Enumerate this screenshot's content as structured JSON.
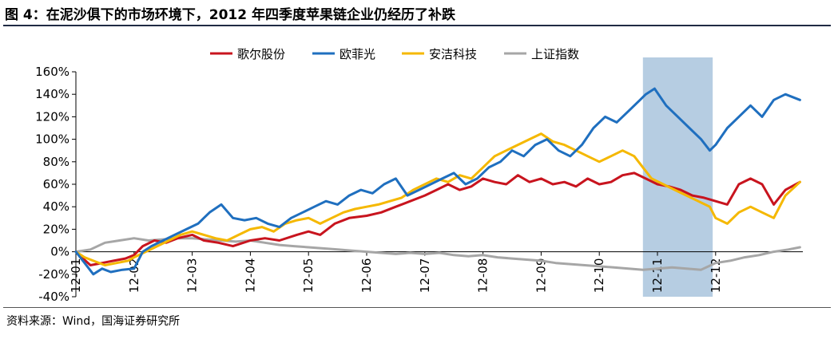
{
  "figure": {
    "title": "图 4：在泥沙俱下的市场环境下，2012 年四季度苹果链企业仍经历了补跌",
    "source": "资料来源：Wind，国海证券研究所"
  },
  "colors": {
    "歌尔股份": "#c8141e",
    "欧菲光": "#1f6fbf",
    "安洁科技": "#f5b800",
    "上证指数": "#a6a6a6",
    "highlight": "#a9c4dd",
    "rule": "#1f2a44"
  },
  "chart_data": {
    "type": "line",
    "title": "",
    "xlabel": "",
    "ylabel": "",
    "ylim": [
      -40,
      160
    ],
    "yticks": [
      "160%",
      "140%",
      "120%",
      "100%",
      "80%",
      "60%",
      "40%",
      "20%",
      "0%",
      "-20%",
      "-40%"
    ],
    "ytick_values": [
      160,
      140,
      120,
      100,
      80,
      60,
      40,
      20,
      0,
      -20,
      -40
    ],
    "xlim": [
      0,
      12.5
    ],
    "xticks": [
      "12-01",
      "12-02",
      "12-03",
      "12-04",
      "12-05",
      "12-06",
      "12-07",
      "12-08",
      "12-09",
      "12-10",
      "12-11",
      "12-12"
    ],
    "xtick_values": [
      0,
      1,
      2,
      3,
      4,
      5,
      6,
      7,
      8,
      9,
      10,
      11
    ],
    "legend_position": "top",
    "highlight_range": [
      9.75,
      10.95
    ],
    "series": [
      {
        "name": "歌尔股份",
        "x": [
          0,
          0.1,
          0.25,
          0.45,
          0.65,
          0.85,
          1.0,
          1.15,
          1.35,
          1.55,
          1.75,
          2.0,
          2.2,
          2.45,
          2.7,
          3.0,
          3.25,
          3.5,
          3.8,
          4.0,
          4.2,
          4.45,
          4.7,
          5.0,
          5.25,
          5.5,
          5.75,
          6.0,
          6.2,
          6.4,
          6.6,
          6.8,
          7.0,
          7.2,
          7.4,
          7.6,
          7.8,
          8.0,
          8.2,
          8.4,
          8.6,
          8.8,
          9.0,
          9.2,
          9.4,
          9.6,
          9.8,
          10.0,
          10.2,
          10.4,
          10.6,
          10.8,
          11.0,
          11.2,
          11.4,
          11.6,
          11.8,
          12.0,
          12.2,
          12.45
        ],
        "values": [
          0,
          -5,
          -12,
          -10,
          -8,
          -6,
          -3,
          5,
          10,
          8,
          12,
          15,
          10,
          8,
          5,
          10,
          12,
          10,
          15,
          18,
          15,
          25,
          30,
          32,
          35,
          40,
          45,
          50,
          55,
          60,
          55,
          58,
          65,
          62,
          60,
          68,
          62,
          65,
          60,
          62,
          58,
          65,
          60,
          62,
          68,
          70,
          65,
          60,
          58,
          55,
          50,
          48,
          45,
          42,
          60,
          65,
          60,
          42,
          55,
          62
        ]
      },
      {
        "name": "欧菲光",
        "x": [
          0,
          0.15,
          0.3,
          0.45,
          0.6,
          0.8,
          1.0,
          1.15,
          1.3,
          1.5,
          1.7,
          1.9,
          2.1,
          2.3,
          2.5,
          2.7,
          2.9,
          3.1,
          3.3,
          3.5,
          3.7,
          3.9,
          4.1,
          4.3,
          4.5,
          4.7,
          4.9,
          5.1,
          5.3,
          5.5,
          5.7,
          5.9,
          6.1,
          6.3,
          6.5,
          6.7,
          6.9,
          7.1,
          7.3,
          7.5,
          7.7,
          7.9,
          8.1,
          8.3,
          8.5,
          8.7,
          8.9,
          9.1,
          9.3,
          9.5,
          9.7,
          9.8,
          9.95,
          10.15,
          10.35,
          10.55,
          10.75,
          10.9,
          11.0,
          11.2,
          11.4,
          11.6,
          11.8,
          12.0,
          12.2,
          12.45
        ],
        "values": [
          0,
          -10,
          -20,
          -15,
          -18,
          -16,
          -15,
          0,
          5,
          10,
          15,
          20,
          25,
          35,
          42,
          30,
          28,
          30,
          25,
          22,
          30,
          35,
          40,
          45,
          42,
          50,
          55,
          52,
          60,
          65,
          50,
          55,
          60,
          65,
          70,
          60,
          65,
          75,
          80,
          90,
          85,
          95,
          100,
          90,
          85,
          95,
          110,
          120,
          115,
          125,
          135,
          140,
          145,
          130,
          120,
          110,
          100,
          90,
          95,
          110,
          120,
          130,
          120,
          135,
          140,
          135
        ]
      },
      {
        "name": "安洁科技",
        "x": [
          0,
          0.15,
          0.3,
          0.5,
          0.7,
          0.9,
          1.0,
          1.2,
          1.4,
          1.6,
          1.8,
          2.0,
          2.2,
          2.4,
          2.6,
          2.8,
          3.0,
          3.2,
          3.4,
          3.6,
          3.8,
          4.0,
          4.2,
          4.4,
          4.6,
          4.8,
          5.0,
          5.2,
          5.4,
          5.6,
          5.8,
          6.0,
          6.2,
          6.4,
          6.6,
          6.8,
          7.0,
          7.2,
          7.4,
          7.6,
          7.8,
          8.0,
          8.2,
          8.4,
          8.6,
          8.8,
          9.0,
          9.2,
          9.4,
          9.6,
          9.75,
          9.9,
          10.1,
          10.3,
          10.5,
          10.7,
          10.9,
          11.0,
          11.2,
          11.4,
          11.6,
          11.8,
          12.0,
          12.2,
          12.45
        ],
        "values": [
          0,
          -5,
          -8,
          -12,
          -10,
          -8,
          -5,
          0,
          5,
          10,
          15,
          18,
          15,
          12,
          10,
          15,
          20,
          22,
          18,
          25,
          28,
          30,
          25,
          30,
          35,
          38,
          40,
          42,
          45,
          48,
          55,
          60,
          65,
          62,
          68,
          65,
          75,
          85,
          90,
          95,
          100,
          105,
          98,
          95,
          90,
          85,
          80,
          85,
          90,
          85,
          75,
          65,
          60,
          55,
          50,
          45,
          40,
          30,
          25,
          35,
          40,
          35,
          30,
          50,
          62
        ]
      },
      {
        "name": "上证指数",
        "x": [
          0,
          0.25,
          0.5,
          0.75,
          1.0,
          1.25,
          1.5,
          1.75,
          2.0,
          2.25,
          2.5,
          2.75,
          3.0,
          3.25,
          3.5,
          3.75,
          4.0,
          4.25,
          4.5,
          4.75,
          5.0,
          5.25,
          5.5,
          5.75,
          6.0,
          6.25,
          6.5,
          6.75,
          7.0,
          7.25,
          7.5,
          7.75,
          8.0,
          8.25,
          8.5,
          8.75,
          9.0,
          9.25,
          9.5,
          9.75,
          10.0,
          10.25,
          10.5,
          10.75,
          11.0,
          11.25,
          11.5,
          11.75,
          12.0,
          12.25,
          12.45
        ],
        "values": [
          0,
          2,
          8,
          10,
          12,
          10,
          11,
          12,
          12,
          11,
          10,
          9,
          10,
          8,
          6,
          5,
          4,
          3,
          2,
          1,
          0,
          -1,
          -2,
          -1,
          -2,
          -1,
          -3,
          -4,
          -3,
          -5,
          -6,
          -7,
          -8,
          -10,
          -11,
          -12,
          -13,
          -14,
          -15,
          -16,
          -15,
          -14,
          -15,
          -16,
          -10,
          -8,
          -5,
          -3,
          0,
          2,
          4
        ]
      }
    ]
  }
}
